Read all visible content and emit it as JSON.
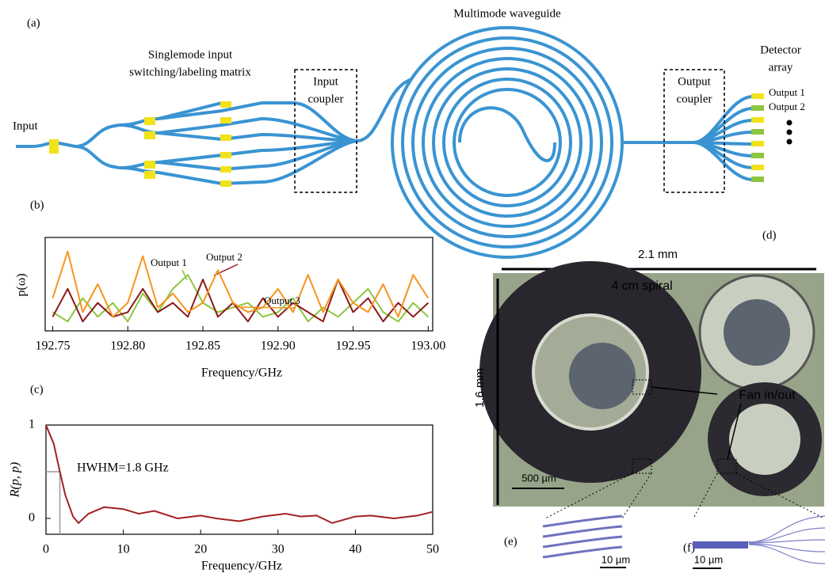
{
  "panel_labels": {
    "a": "(a)",
    "b": "(b)",
    "c": "(c)",
    "d": "(d)",
    "e": "(e)",
    "f": "(f)"
  },
  "diagram": {
    "input": "Input",
    "matrix": [
      "Singlemode input",
      "switching/labeling matrix"
    ],
    "input_coupler": [
      "Input",
      "coupler"
    ],
    "waveguide": "Multimode waveguide",
    "output_coupler": [
      "Output",
      "coupler"
    ],
    "detector": [
      "Detector",
      "array"
    ],
    "outputs": [
      "Output 1",
      "Output 2"
    ]
  },
  "photo": {
    "width": "2.1 mm",
    "spiral": "4 cm spiral",
    "height": "1.6 mm",
    "fan": "Fan in/out",
    "scale": "500 µm",
    "scale_e": "10 µm",
    "scale_f": "10 µm"
  },
  "chart_data": [
    {
      "type": "line",
      "ylabel": "p(ω)",
      "xlabel": "Frequency/GHz",
      "x": [
        192.75,
        192.76,
        192.77,
        192.78,
        192.79,
        192.8,
        192.81,
        192.82,
        192.83,
        192.84,
        192.85,
        192.86,
        192.87,
        192.88,
        192.89,
        192.9,
        192.91,
        192.92,
        192.93,
        192.94,
        192.95,
        192.96,
        192.97,
        192.98,
        192.99,
        193.0
      ],
      "xlim": [
        192.745,
        193.003
      ],
      "xticks": [
        192.75,
        {
          "value": 192.8,
          "label": "192.80"
        },
        192.85,
        {
          "value": 192.9,
          "label": "192.90"
        },
        192.95,
        {
          "value": 193,
          "label": "193.00"
        }
      ],
      "ylim": [
        0,
        1
      ],
      "series": [
        {
          "name": "Output 1",
          "color": "#8cc63f",
          "values": [
            0.2,
            0.1,
            0.35,
            0.15,
            0.3,
            0.1,
            0.4,
            0.2,
            0.45,
            0.6,
            0.3,
            0.2,
            0.25,
            0.3,
            0.15,
            0.2,
            0.35,
            0.1,
            0.25,
            0.15,
            0.3,
            0.45,
            0.2,
            0.1,
            0.3,
            0.15
          ]
        },
        {
          "name": "Output 2",
          "color": "#8b1a1a",
          "values": [
            0.15,
            0.45,
            0.1,
            0.3,
            0.15,
            0.2,
            0.45,
            0.2,
            0.3,
            0.15,
            0.55,
            0.15,
            0.3,
            0.1,
            0.35,
            0.15,
            0.3,
            0.2,
            0.1,
            0.55,
            0.2,
            0.35,
            0.1,
            0.3,
            0.15,
            0.3
          ]
        },
        {
          "name": "Output 3",
          "color": "#f7941d",
          "values": [
            0.35,
            0.85,
            0.2,
            0.5,
            0.15,
            0.3,
            0.8,
            0.25,
            0.4,
            0.2,
            0.3,
            0.65,
            0.3,
            0.2,
            0.25,
            0.45,
            0.2,
            0.6,
            0.2,
            0.55,
            0.3,
            0.2,
            0.5,
            0.15,
            0.6,
            0.35
          ]
        }
      ]
    },
    {
      "type": "line",
      "ylabel": "R(p, p)",
      "xlabel": "Frequency/GHz",
      "annotation": "HWHM=1.8 GHz",
      "hwhm": {
        "x": 1.8,
        "y": 0.5
      },
      "x": [
        0,
        1,
        1.8,
        2.5,
        3.5,
        4.2,
        5.5,
        7.5,
        10,
        12,
        14,
        17,
        20,
        22,
        25,
        28,
        31,
        33,
        35,
        37,
        40,
        42,
        45,
        48,
        50
      ],
      "xlim": [
        0,
        50
      ],
      "xticks": [
        0,
        10,
        20,
        30,
        40,
        50
      ],
      "ylim": [
        -0.17,
        1
      ],
      "yticks": [
        0,
        1
      ],
      "series": [
        {
          "name": null,
          "color": "#a31f24",
          "values": [
            1,
            0.8,
            0.5,
            0.25,
            0.02,
            -0.05,
            0.05,
            0.12,
            0.1,
            0.05,
            0.08,
            0,
            0.03,
            0,
            -0.03,
            0.02,
            0.05,
            0.02,
            0.03,
            -0.05,
            0.02,
            0.03,
            0,
            0.03,
            0.07
          ]
        }
      ]
    }
  ]
}
